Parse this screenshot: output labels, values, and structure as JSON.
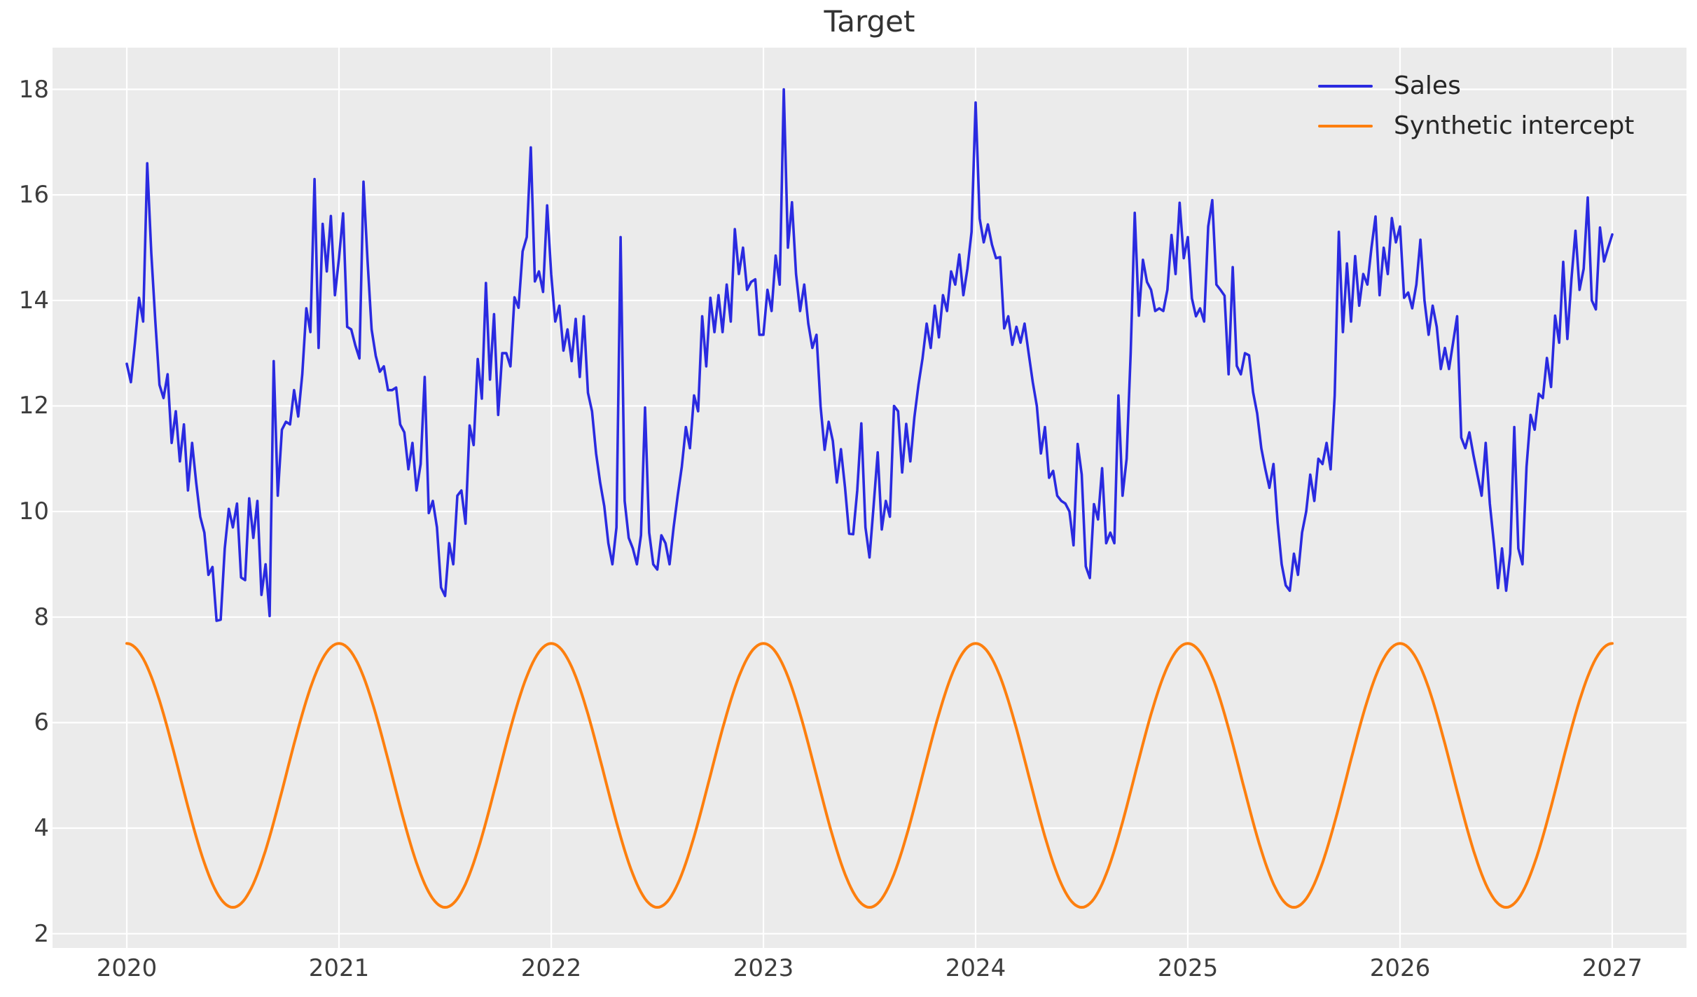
{
  "title": "Target",
  "legend": {
    "position": "upper right",
    "items": [
      {
        "label": "Sales",
        "color": "#2a2ae0"
      },
      {
        "label": "Synthetic intercept",
        "color": "#fd7f0e"
      }
    ]
  },
  "colors": {
    "figure_bg": "#ffffff",
    "axes_bg": "#ebebeb",
    "grid": "#ffffff",
    "tick_label": "#3d3d3d",
    "title": "#333333",
    "legend_text": "#262626",
    "sales_line": "#2a2ae0",
    "intercept_line": "#fd7f0e"
  },
  "chart_data": {
    "type": "line",
    "title": "Target",
    "xlabel": "",
    "ylabel": "",
    "grid": true,
    "legend_position": "upper right",
    "x_axis": {
      "tick_labels": [
        "2020",
        "2021",
        "2022",
        "2023",
        "2024",
        "2025",
        "2026",
        "2027"
      ],
      "tick_values": [
        2020,
        2021,
        2022,
        2023,
        2024,
        2025,
        2026,
        2027
      ],
      "lim": [
        2019.65,
        2027.35
      ]
    },
    "y_axis": {
      "tick_labels": [
        "2",
        "4",
        "6",
        "8",
        "10",
        "12",
        "14",
        "16",
        "18"
      ],
      "tick_values": [
        2,
        4,
        6,
        8,
        10,
        12,
        14,
        16,
        18
      ],
      "lim": [
        1.73,
        18.79
      ]
    },
    "series": [
      {
        "name": "Sales",
        "color": "#2a2ae0",
        "line_width": 3.6,
        "sampling": "weekly",
        "x_start": 2020.0,
        "x_step_years": 0.019230769,
        "values_by_year": [
          [
            12.8,
            12.45,
            13.2,
            14.05,
            13.6,
            16.6,
            14.9,
            13.6,
            12.4,
            12.15,
            12.6,
            11.3,
            11.9,
            10.95,
            11.65,
            10.4,
            11.3,
            10.55,
            9.9,
            9.6,
            8.8,
            8.95,
            7.93,
            7.95,
            9.3,
            10.05,
            9.7,
            10.15,
            8.75,
            8.7,
            10.25,
            9.5,
            10.2,
            8.42,
            9.0,
            8.02,
            12.85,
            10.3,
            11.55,
            11.7,
            11.65,
            12.3,
            11.8,
            12.6,
            13.85,
            13.4,
            16.3,
            13.1,
            15.45,
            14.55,
            15.6,
            14.1
          ],
          [
            14.8,
            15.65,
            13.5,
            13.45,
            13.15,
            12.9,
            16.25,
            14.75,
            13.45,
            12.95,
            12.65,
            12.75,
            12.3,
            12.3,
            12.35,
            11.65,
            11.5,
            10.8,
            11.3,
            10.4,
            10.9,
            12.55,
            9.97,
            10.2,
            9.7,
            8.56,
            8.4,
            9.4,
            9.0,
            10.3,
            10.4,
            9.77,
            11.63,
            11.26,
            12.89,
            12.14,
            14.33,
            12.5,
            13.74,
            11.83,
            13.0,
            13.0,
            12.75,
            14.06,
            13.86,
            14.93,
            15.2,
            16.9,
            14.36,
            14.55,
            14.16,
            15.8
          ],
          [
            14.5,
            13.6,
            13.9,
            13.05,
            13.45,
            12.85,
            13.65,
            12.55,
            13.7,
            12.25,
            11.9,
            11.1,
            10.55,
            10.1,
            9.4,
            9.0,
            9.7,
            15.2,
            10.2,
            9.5,
            9.3,
            9.0,
            9.55,
            11.97,
            9.6,
            9.0,
            8.9,
            9.55,
            9.4,
            9.0,
            9.7,
            10.3,
            10.85,
            11.6,
            11.2,
            12.2,
            11.9,
            13.7,
            12.75,
            14.05,
            13.4,
            14.1,
            13.4,
            14.3,
            13.6,
            15.35,
            14.5,
            15.0,
            14.2,
            14.35,
            14.4,
            13.35
          ],
          [
            13.35,
            14.2,
            13.8,
            14.85,
            14.3,
            18.0,
            15.0,
            15.86,
            14.5,
            13.8,
            14.3,
            13.56,
            13.1,
            13.35,
            12.0,
            11.17,
            11.7,
            11.34,
            10.55,
            11.18,
            10.46,
            9.58,
            9.57,
            10.4,
            11.67,
            9.7,
            9.13,
            10.1,
            11.12,
            9.66,
            10.2,
            9.9,
            12.0,
            11.9,
            10.74,
            11.66,
            10.95,
            11.79,
            12.4,
            12.9,
            13.56,
            13.1,
            13.9,
            13.3,
            14.1,
            13.8,
            14.55,
            14.3,
            14.87,
            14.1,
            14.6,
            15.3
          ],
          [
            17.75,
            15.55,
            15.1,
            15.44,
            15.06,
            14.8,
            14.82,
            13.47,
            13.7,
            13.16,
            13.5,
            13.2,
            13.56,
            13.0,
            12.45,
            12.0,
            11.1,
            11.6,
            10.64,
            10.77,
            10.3,
            10.2,
            10.15,
            10.0,
            9.36,
            11.28,
            10.7,
            8.96,
            8.74,
            10.14,
            9.85,
            10.82,
            9.4,
            9.6,
            9.4,
            12.2,
            10.3,
            11.0,
            13.0,
            15.66,
            13.71,
            14.77,
            14.35,
            14.2,
            13.8,
            13.85,
            13.8,
            14.2,
            15.24,
            14.5,
            15.85,
            14.8
          ],
          [
            15.2,
            14.04,
            13.7,
            13.85,
            13.6,
            15.4,
            15.9,
            14.3,
            14.2,
            14.09,
            12.6,
            14.63,
            12.76,
            12.6,
            13.0,
            12.96,
            12.26,
            11.86,
            11.2,
            10.8,
            10.45,
            10.9,
            9.8,
            9.0,
            8.6,
            8.5,
            9.2,
            8.8,
            9.6,
            10.0,
            10.7,
            10.2,
            11.0,
            10.9,
            11.3,
            10.8,
            12.2,
            15.3,
            13.4,
            14.7,
            13.6,
            14.84,
            13.9,
            14.5,
            14.3,
            15.0,
            15.59,
            14.1,
            15.0,
            14.5,
            15.56,
            15.1
          ],
          [
            15.4,
            14.05,
            14.15,
            13.85,
            14.3,
            15.15,
            14.0,
            13.35,
            13.9,
            13.5,
            12.7,
            13.1,
            12.7,
            13.2,
            13.7,
            11.4,
            11.2,
            11.5,
            11.07,
            10.68,
            10.3,
            11.3,
            10.15,
            9.4,
            8.55,
            9.3,
            8.5,
            9.2,
            11.6,
            9.3,
            9.0,
            10.85,
            11.83,
            11.55,
            12.23,
            12.15,
            12.91,
            12.36,
            13.71,
            13.2,
            14.73,
            13.27,
            14.4,
            15.32,
            14.2,
            14.6,
            15.95,
            14.0,
            13.83,
            15.38,
            14.74,
            15.0
          ]
        ],
        "final_point": {
          "x": 2027.0,
          "value": 15.25
        }
      },
      {
        "name": "Synthetic intercept",
        "color": "#fd7f0e",
        "line_width": 4,
        "model": "sinusoid",
        "mean": 5.0,
        "amplitude": 2.5,
        "period_years": 1,
        "phase": "maximum at each year start",
        "x_start": 2020.0,
        "x_end": 2027.0,
        "min": 2.5,
        "max": 7.5
      }
    ]
  }
}
